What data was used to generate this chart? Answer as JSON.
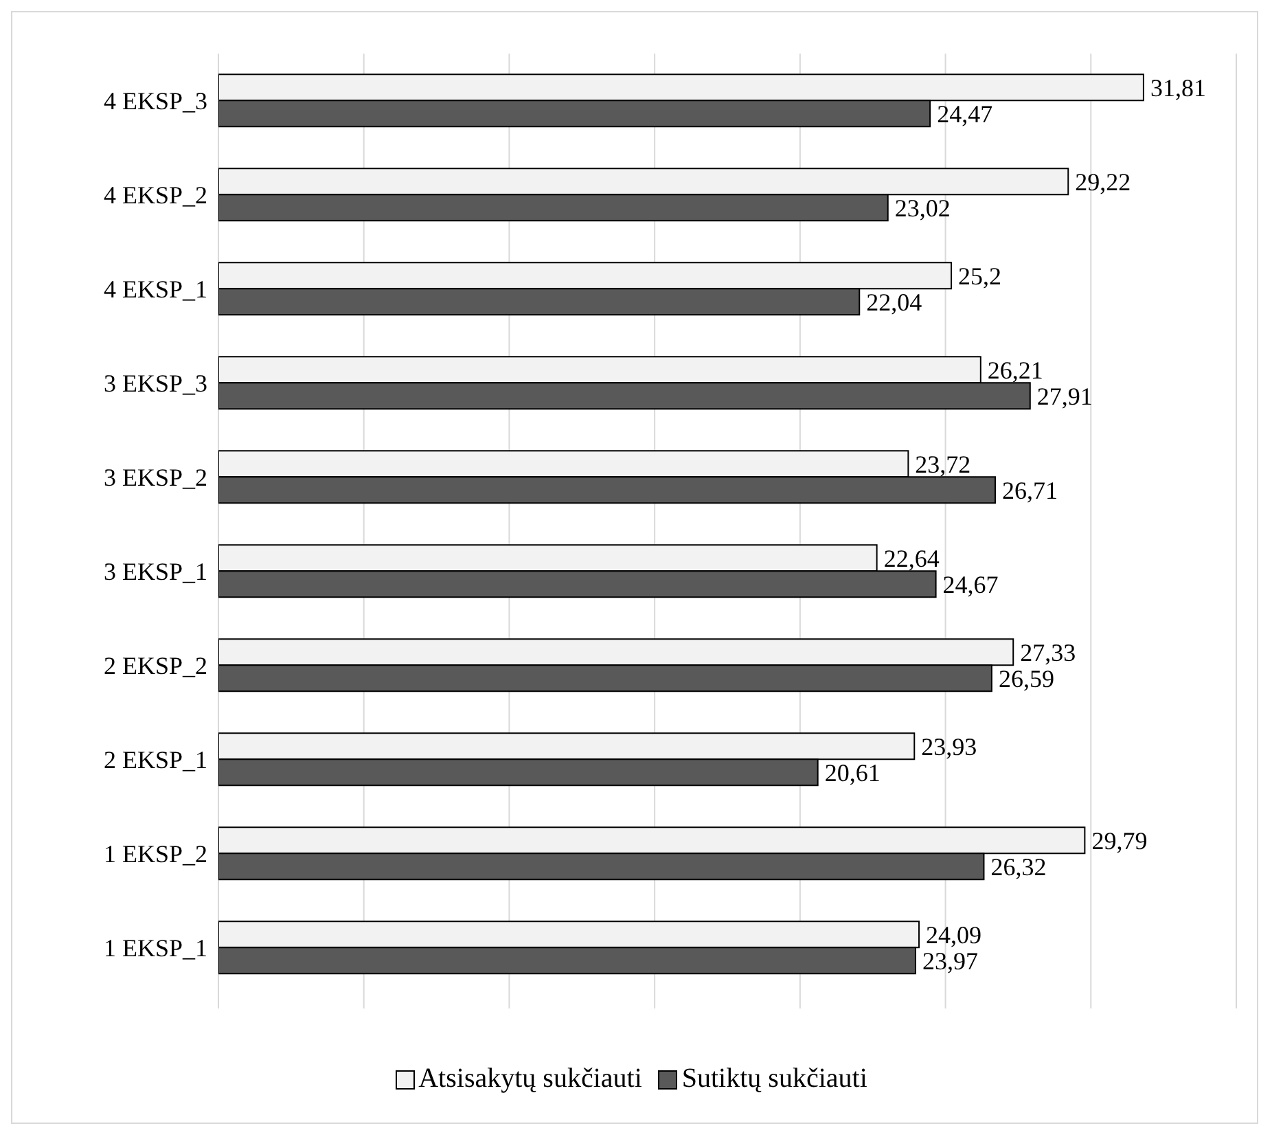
{
  "chart_data": {
    "type": "bar",
    "orientation": "horizontal",
    "categories": [
      "4 EKSP_3",
      "4 EKSP_2",
      "4 EKSP_1",
      "3 EKSP_3",
      "3 EKSP_2",
      "3 EKSP_1",
      "2 EKSP_2",
      "2 EKSP_1",
      "1 EKSP_2",
      "1 EKSP_1"
    ],
    "series": [
      {
        "name": "Atsisakytų sukčiauti",
        "color": "#f2f2f2",
        "values": [
          31.81,
          29.22,
          25.2,
          26.21,
          23.72,
          22.64,
          27.33,
          23.93,
          29.79,
          24.09
        ],
        "value_labels": [
          "31,81",
          "29,22",
          "25,2",
          "26,21",
          "23,72",
          "22,64",
          "27,33",
          "23,93",
          "29,79",
          "24,09"
        ]
      },
      {
        "name": "Sutiktų sukčiauti",
        "color": "#595959",
        "values": [
          24.47,
          23.02,
          22.04,
          27.91,
          26.71,
          24.67,
          26.59,
          20.61,
          26.32,
          23.97
        ],
        "value_labels": [
          "24,47",
          "23,02",
          "22,04",
          "27,91",
          "26,71",
          "24,67",
          "26,59",
          "20,61",
          "26,32",
          "23,97"
        ]
      }
    ],
    "xlim": [
      0,
      35
    ],
    "tick_labels": "y",
    "grid": "x",
    "legend": "bottom"
  }
}
